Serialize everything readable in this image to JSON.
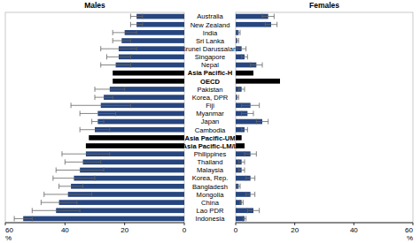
{
  "chart_data": {
    "type": "bar",
    "orientation": "horizontal",
    "xlabel": "%",
    "categories": [
      "Australia",
      "New Zealand",
      "India",
      "Sri Lanka",
      "Brunei Darussalam",
      "Singapore",
      "Nepal",
      "Asia Pacific-H",
      "OECD",
      "Pakistan",
      "Korea, DPR",
      "Fiji",
      "Myanmar",
      "Japan",
      "Cambodia",
      "Asia Pacific-UM",
      "Asia Pacific-LM/L",
      "Philippines",
      "Thailand",
      "Malaysia",
      "Korea, Rep.",
      "Bangladesh",
      "Mongolia",
      "China",
      "Lao PDR",
      "Indonesia"
    ],
    "series": [
      {
        "name": "Males",
        "xlim": [
          60,
          0
        ],
        "xticks": [
          60,
          40,
          20,
          0
        ],
        "values": [
          16,
          16,
          20,
          21,
          22,
          22,
          23,
          24,
          24,
          25,
          27,
          28,
          29,
          29,
          30,
          32,
          33,
          33,
          34,
          35,
          37,
          38,
          39,
          42,
          43,
          54
        ],
        "errors": [
          2,
          2,
          4,
          3,
          6,
          4,
          5,
          0,
          0,
          5,
          3,
          10,
          6,
          2,
          5,
          0,
          0,
          8,
          6,
          8,
          7,
          4,
          8,
          6,
          8,
          3
        ],
        "colors": [
          "#27467f",
          "#27467f",
          "#27467f",
          "#27467f",
          "#27467f",
          "#27467f",
          "#27467f",
          "#000000",
          "#000000",
          "#27467f",
          "#27467f",
          "#27467f",
          "#27467f",
          "#27467f",
          "#27467f",
          "#000000",
          "#000000",
          "#27467f",
          "#27467f",
          "#27467f",
          "#27467f",
          "#27467f",
          "#27467f",
          "#27467f",
          "#27467f",
          "#27467f"
        ]
      },
      {
        "name": "Females",
        "xlim": [
          0,
          60
        ],
        "xticks": [
          0,
          20,
          40,
          60
        ],
        "values": [
          11,
          12,
          1,
          0.5,
          2,
          3,
          7,
          6,
          15,
          2,
          0.5,
          5,
          4,
          9,
          3,
          2,
          3,
          5,
          2,
          2,
          5,
          1,
          5,
          2,
          6,
          3
        ],
        "errors": [
          2,
          2,
          0.5,
          0.5,
          1.5,
          1,
          2,
          0,
          0,
          1,
          0.5,
          3,
          2,
          2,
          1,
          0,
          0,
          2,
          1,
          1,
          1.5,
          0.5,
          1.5,
          0.5,
          2,
          0.5
        ],
        "colors": [
          "#27467f",
          "#27467f",
          "#27467f",
          "#27467f",
          "#27467f",
          "#27467f",
          "#27467f",
          "#000000",
          "#000000",
          "#27467f",
          "#27467f",
          "#27467f",
          "#27467f",
          "#27467f",
          "#27467f",
          "#000000",
          "#000000",
          "#27467f",
          "#27467f",
          "#27467f",
          "#27467f",
          "#27467f",
          "#27467f",
          "#27467f",
          "#27467f",
          "#27467f"
        ]
      }
    ]
  }
}
